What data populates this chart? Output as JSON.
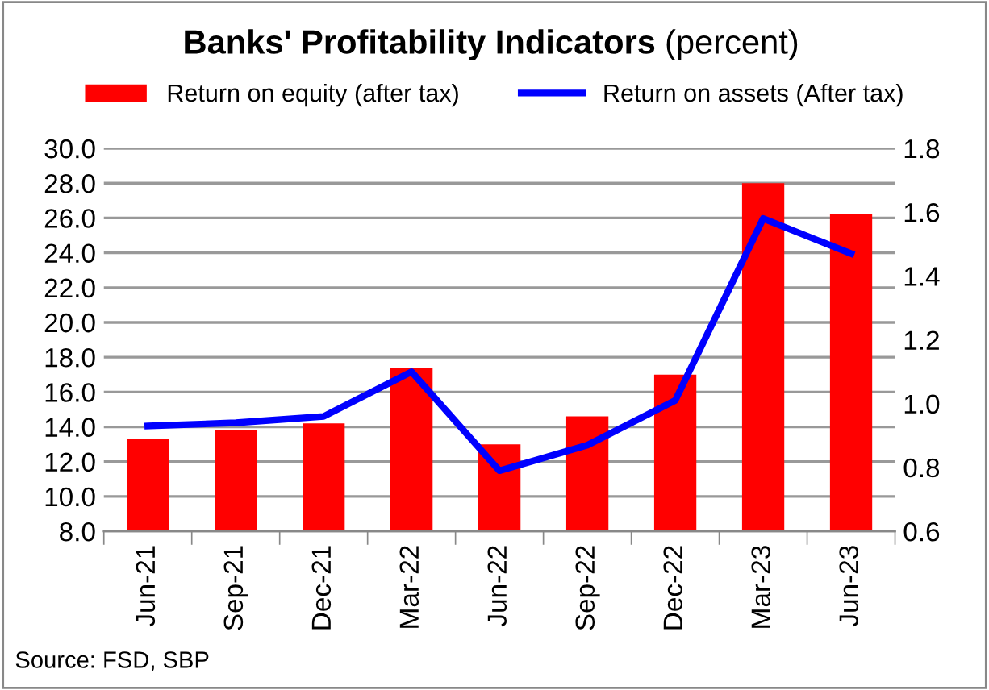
{
  "chart_data": {
    "type": "bar",
    "title": "Banks' Profitability Indicators",
    "subtitle": "(percent)",
    "categories": [
      "Jun-21",
      "Sep-21",
      "Dec-21",
      "Mar-22",
      "Jun-22",
      "Sep-22",
      "Dec-22",
      "Mar-23",
      "Jun-23"
    ],
    "series": [
      {
        "name": "Return on equity (after tax)",
        "color": "#ff0000",
        "values": [
          13.3,
          13.8,
          14.2,
          17.4,
          13.0,
          14.6,
          17.0,
          28.0,
          26.2
        ]
      },
      {
        "name": "Return on assets (After tax)",
        "type": "line",
        "axis": "y2",
        "color": "#0000ff",
        "values": [
          0.93,
          0.94,
          0.96,
          1.1,
          0.79,
          0.87,
          1.01,
          1.58,
          1.47
        ]
      }
    ],
    "ylim": [
      8,
      30
    ],
    "yticks": [
      {
        "value": 8,
        "label": "8.0"
      },
      {
        "value": 10,
        "label": "10.0"
      },
      {
        "value": 12,
        "label": "12.0"
      },
      {
        "value": 14,
        "label": "14.0"
      },
      {
        "value": 16,
        "label": "16.0"
      },
      {
        "value": 18,
        "label": "18.0"
      },
      {
        "value": 20,
        "label": "20.0"
      },
      {
        "value": 22,
        "label": "22.0"
      },
      {
        "value": 24,
        "label": "24.0"
      },
      {
        "value": 26,
        "label": "26.0"
      },
      {
        "value": 28,
        "label": "28.0"
      },
      {
        "value": 30,
        "label": "30.0"
      }
    ],
    "y2lim": [
      0.6,
      1.8
    ],
    "y2ticks": [
      0.6,
      0.8,
      {
        "value": 1,
        "label": "1.0"
      },
      1.2,
      1.4,
      1.6,
      1.8
    ],
    "grid": "y",
    "legend": "top",
    "marker": "none",
    "line_style": "solid",
    "annotations": [
      "Source: FSD, SBP"
    ]
  }
}
